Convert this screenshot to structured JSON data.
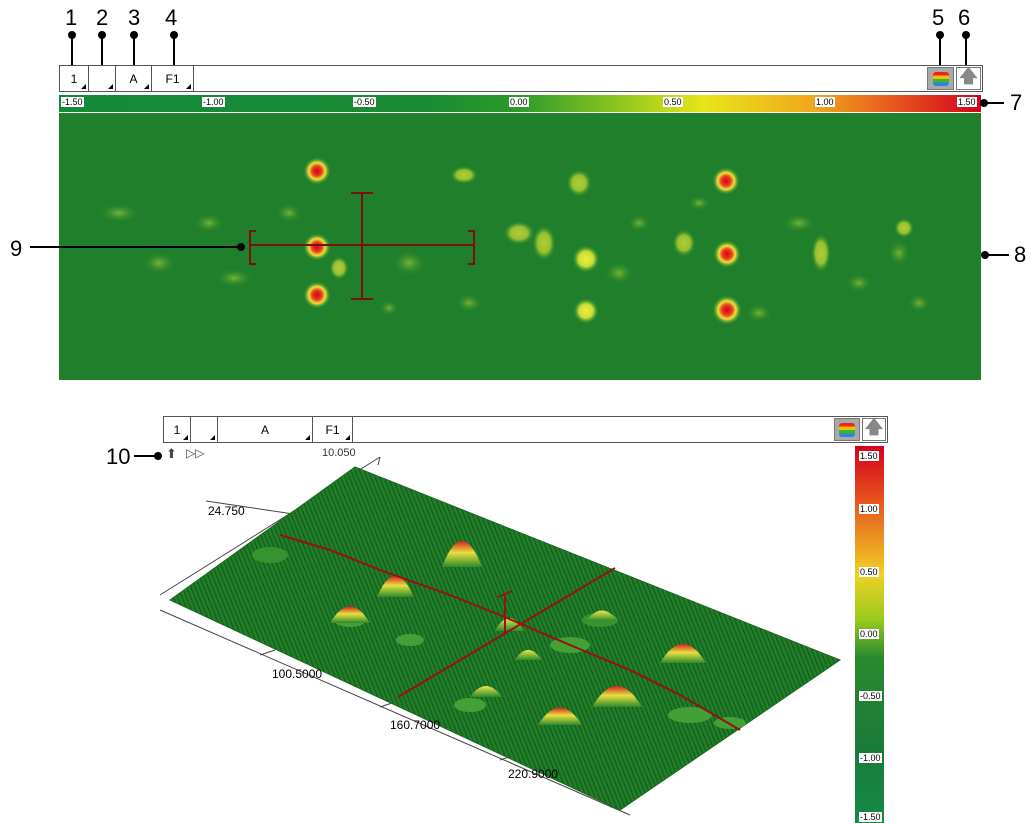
{
  "callouts": [
    "1",
    "2",
    "3",
    "4",
    "5",
    "6",
    "7",
    "8",
    "9",
    "10"
  ],
  "top_toolbar": {
    "btn1": "1",
    "btn2": "",
    "btn3": "A",
    "btn4": "F1"
  },
  "top_colorbar_labels": [
    "-1.50",
    "-1.00",
    "-0.50",
    "0.00",
    "0.50",
    "1.00",
    "1.50"
  ],
  "bottom_toolbar": {
    "btn1": "1",
    "btn2": "",
    "btn3": "A",
    "btn4": "F1"
  },
  "vertical_colorbar_labels": [
    "1.50",
    "1.00",
    "0.50",
    "0.00",
    "-0.50",
    "-1.00",
    "-1.50"
  ],
  "axis_labels_3d": {
    "top_partial": "10.050",
    "y_label": "24.750",
    "x1": "100.5000",
    "x2": "160.7000",
    "x3": "220.9000"
  },
  "nav_icons": [
    "double-chevron-up-icon",
    "double-chevron-right-icon"
  ],
  "colors": {
    "field_green": "#1f7f2b",
    "accent_red": "#d0102a",
    "peak_yellow": "#e8e040",
    "cross_dark_red": "#7a1010"
  }
}
